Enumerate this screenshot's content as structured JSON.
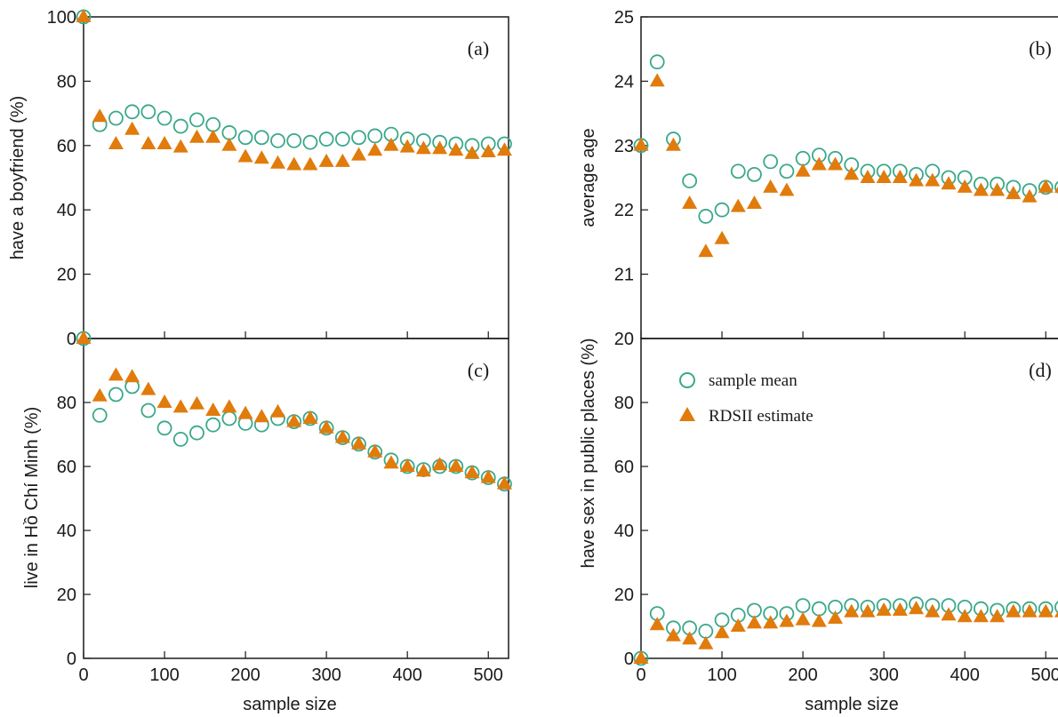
{
  "colors": {
    "sample_mean": "#3aa88a",
    "rdsii": "#e07b0c",
    "axis": "#1a1a1a"
  },
  "x_axis_label": "sample size",
  "legend": {
    "sample_mean": "sample mean",
    "rdsii": "RDSII estimate"
  },
  "chart_data": [
    {
      "id": "a",
      "type": "scatter",
      "tag": "(a)",
      "ylabel": "have a boyfriend (%)",
      "xlim": [
        0,
        525
      ],
      "ylim": [
        0,
        100
      ],
      "xticks": [
        0,
        100,
        200,
        300,
        400,
        500
      ],
      "yticks": [
        0,
        20,
        40,
        60,
        80,
        100
      ],
      "x": [
        0,
        20,
        40,
        60,
        80,
        100,
        120,
        140,
        160,
        180,
        200,
        220,
        240,
        260,
        280,
        300,
        320,
        340,
        360,
        380,
        400,
        420,
        440,
        460,
        480,
        500,
        520
      ],
      "series": [
        {
          "name": "sample mean",
          "marker": "circle",
          "values": [
            100,
            66.5,
            68.5,
            70.5,
            70.5,
            68.5,
            66.0,
            68.0,
            66.5,
            64.0,
            62.5,
            62.5,
            61.5,
            61.5,
            61.0,
            62.0,
            62.0,
            62.5,
            63.0,
            63.5,
            62.0,
            61.5,
            61.0,
            60.5,
            60.0,
            60.5,
            60.5
          ]
        },
        {
          "name": "RDSII estimate",
          "marker": "triangle",
          "values": [
            100,
            69.0,
            60.5,
            65.0,
            60.5,
            60.5,
            59.5,
            62.5,
            62.5,
            60.0,
            56.5,
            56.0,
            54.5,
            54.0,
            54.0,
            55.0,
            55.0,
            57.0,
            58.5,
            60.0,
            59.5,
            59.0,
            59.0,
            58.5,
            57.5,
            58.0,
            58.5
          ]
        }
      ]
    },
    {
      "id": "b",
      "type": "scatter",
      "tag": "(b)",
      "ylabel": "average age",
      "xlim": [
        0,
        525
      ],
      "ylim": [
        20,
        25
      ],
      "xticks": [
        0,
        100,
        200,
        300,
        400,
        500
      ],
      "yticks": [
        20,
        21,
        22,
        23,
        24,
        25
      ],
      "x": [
        0,
        20,
        40,
        60,
        80,
        100,
        120,
        140,
        160,
        180,
        200,
        220,
        240,
        260,
        280,
        300,
        320,
        340,
        360,
        380,
        400,
        420,
        440,
        460,
        480,
        500,
        520
      ],
      "series": [
        {
          "name": "sample mean",
          "marker": "circle",
          "values": [
            23.0,
            24.3,
            23.1,
            22.45,
            21.9,
            22.0,
            22.6,
            22.55,
            22.75,
            22.6,
            22.8,
            22.85,
            22.8,
            22.7,
            22.6,
            22.6,
            22.6,
            22.55,
            22.6,
            22.5,
            22.5,
            22.4,
            22.4,
            22.35,
            22.3,
            22.35,
            22.35
          ]
        },
        {
          "name": "RDSII estimate",
          "marker": "triangle",
          "values": [
            23.0,
            24.0,
            23.0,
            22.1,
            21.35,
            21.55,
            22.05,
            22.1,
            22.35,
            22.3,
            22.6,
            22.7,
            22.7,
            22.55,
            22.5,
            22.5,
            22.5,
            22.45,
            22.45,
            22.4,
            22.35,
            22.3,
            22.3,
            22.25,
            22.2,
            22.35,
            22.35
          ]
        }
      ]
    },
    {
      "id": "c",
      "type": "scatter",
      "tag": "(c)",
      "ylabel": "live in Hồ Chí Minh (%)",
      "xlim": [
        0,
        525
      ],
      "ylim": [
        0,
        100
      ],
      "xticks": [
        0,
        100,
        200,
        300,
        400,
        500
      ],
      "yticks": [
        0,
        20,
        40,
        60,
        80
      ],
      "x": [
        0,
        20,
        40,
        60,
        80,
        100,
        120,
        140,
        160,
        180,
        200,
        220,
        240,
        260,
        280,
        300,
        320,
        340,
        360,
        380,
        400,
        420,
        440,
        460,
        480,
        500,
        520
      ],
      "series": [
        {
          "name": "sample mean",
          "marker": "circle",
          "values": [
            100,
            76.0,
            82.5,
            85.0,
            77.5,
            72.0,
            68.5,
            70.5,
            73.0,
            75.0,
            73.5,
            73.0,
            75.0,
            74.0,
            75.0,
            72.0,
            69.0,
            67.0,
            64.5,
            62.0,
            60.0,
            59.0,
            60.0,
            60.0,
            58.0,
            56.5,
            54.5
          ]
        },
        {
          "name": "RDSII estimate",
          "marker": "triangle",
          "values": [
            100,
            82.0,
            88.5,
            88.0,
            84.0,
            80.0,
            78.5,
            79.5,
            77.5,
            78.5,
            76.5,
            75.5,
            77.0,
            74.0,
            75.0,
            72.0,
            69.0,
            67.0,
            64.5,
            61.0,
            60.0,
            58.5,
            60.5,
            60.0,
            58.0,
            56.5,
            54.5
          ]
        }
      ]
    },
    {
      "id": "d",
      "type": "scatter",
      "tag": "(d)",
      "ylabel": "have sex in public places (%)",
      "xlim": [
        0,
        525
      ],
      "ylim": [
        0,
        100
      ],
      "xticks": [
        0,
        100,
        200,
        300,
        400,
        500
      ],
      "yticks": [
        0,
        20,
        40,
        60,
        80
      ],
      "x": [
        0,
        20,
        40,
        60,
        80,
        100,
        120,
        140,
        160,
        180,
        200,
        220,
        240,
        260,
        280,
        300,
        320,
        340,
        360,
        380,
        400,
        420,
        440,
        460,
        480,
        500,
        520
      ],
      "series": [
        {
          "name": "sample mean",
          "marker": "circle",
          "values": [
            0,
            14.0,
            9.5,
            9.5,
            8.5,
            12.0,
            13.5,
            15.0,
            14.0,
            14.0,
            16.5,
            15.5,
            16.0,
            16.5,
            16.0,
            16.5,
            16.5,
            17.0,
            16.5,
            16.5,
            16.0,
            15.5,
            15.0,
            15.5,
            15.5,
            15.5,
            16.0
          ]
        },
        {
          "name": "RDSII estimate",
          "marker": "triangle",
          "values": [
            0,
            10.5,
            7.0,
            6.0,
            4.5,
            8.0,
            10.0,
            11.0,
            11.0,
            11.5,
            12.0,
            11.5,
            12.5,
            14.5,
            14.5,
            15.0,
            15.0,
            15.5,
            14.5,
            13.5,
            13.0,
            13.0,
            13.0,
            14.5,
            14.5,
            14.5,
            14.5
          ]
        }
      ]
    }
  ]
}
